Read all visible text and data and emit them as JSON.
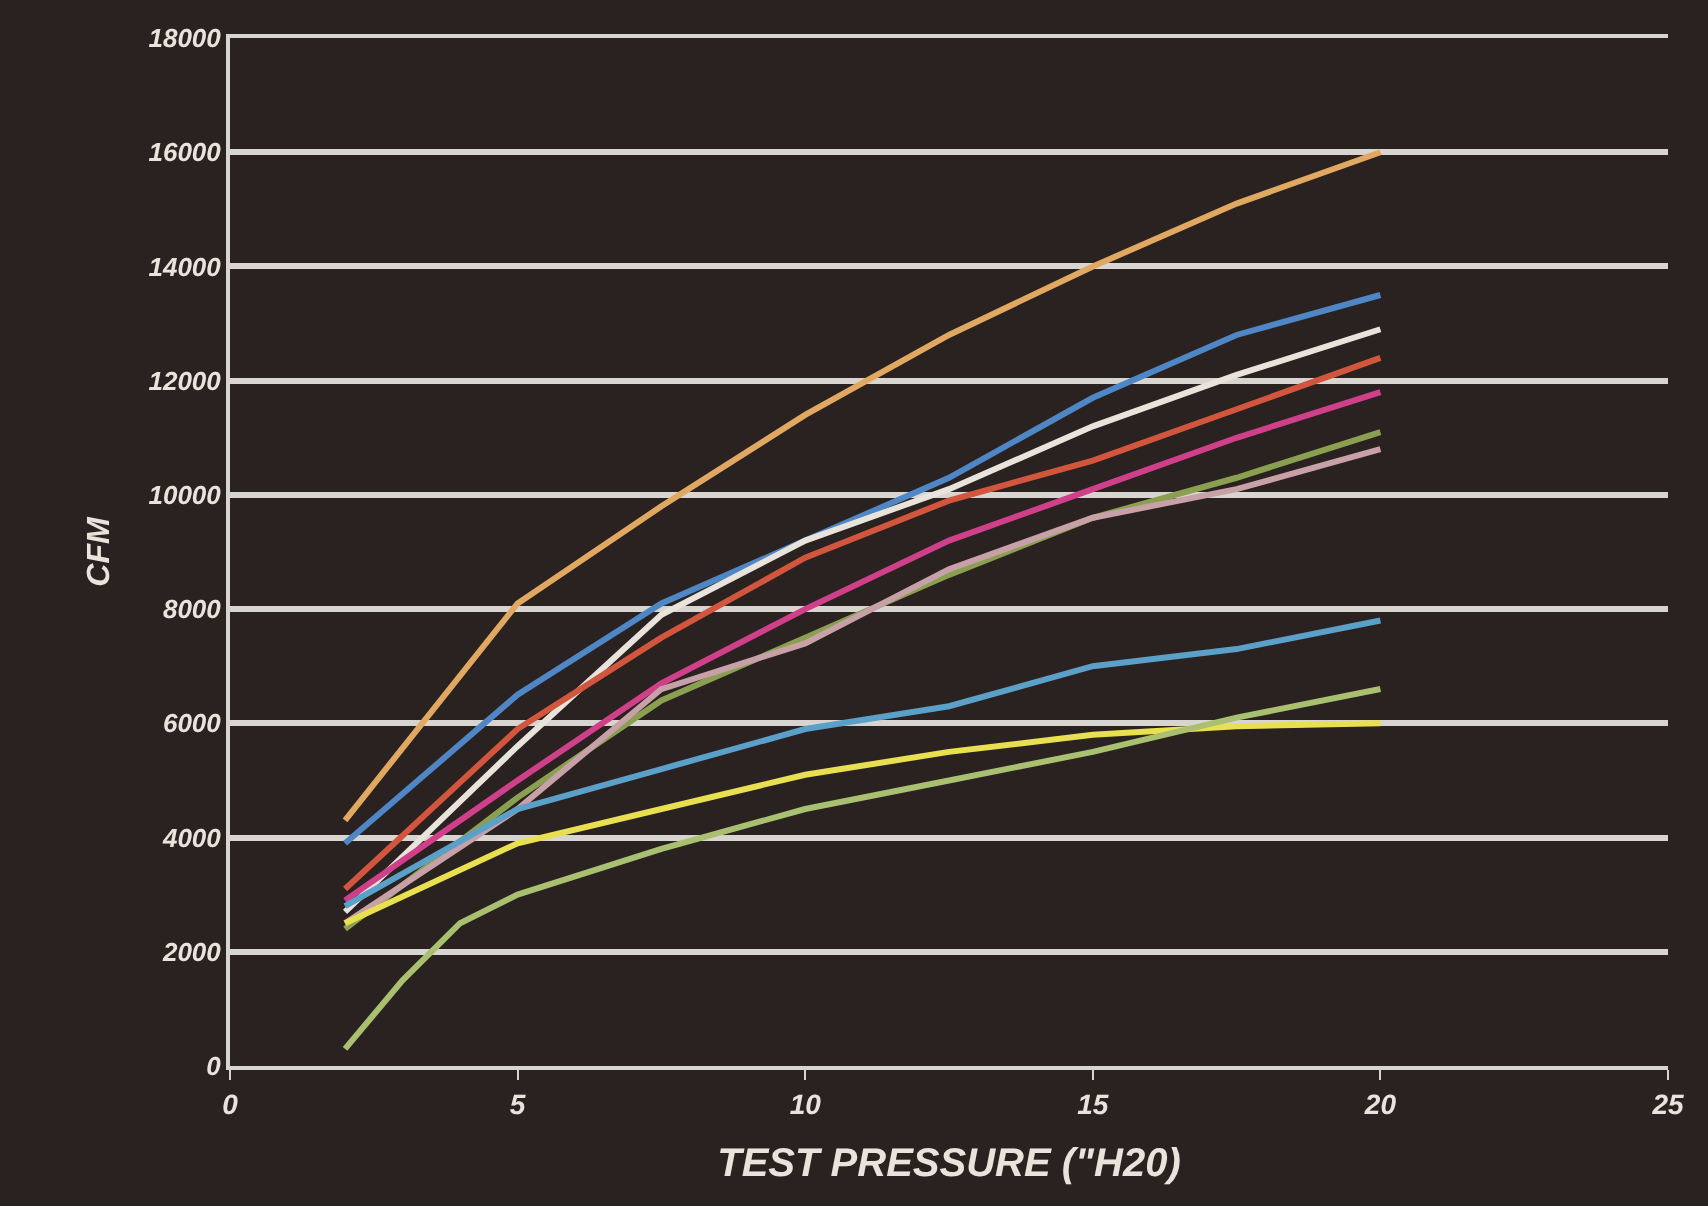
{
  "chart_data": {
    "type": "line",
    "xlabel": "TEST PRESSURE (\"H20)",
    "ylabel": "CFM",
    "x": [
      2,
      5,
      7.5,
      10,
      12.5,
      15,
      17.5,
      20
    ],
    "xlim": [
      0,
      25
    ],
    "xticks": [
      0,
      5,
      10,
      15,
      20,
      25
    ],
    "ylim": [
      0,
      18000
    ],
    "yticks": [
      0,
      2000,
      4000,
      6000,
      8000,
      10000,
      12000,
      14000,
      16000,
      18000
    ],
    "grid": "y",
    "marker": "none",
    "line_style": "solid",
    "series": [
      {
        "color": "#e0a860",
        "values": [
          4300,
          8100,
          9800,
          11400,
          12800,
          14000,
          15100,
          16000
        ]
      },
      {
        "color": "#4f86c6",
        "values": [
          3900,
          6500,
          8100,
          9200,
          10300,
          11700,
          12800,
          13500
        ]
      },
      {
        "color": "#e8e4dc",
        "values": [
          2700,
          5600,
          7900,
          9200,
          10100,
          11200,
          12100,
          12900
        ]
      },
      {
        "color": "#d2553e",
        "values": [
          3100,
          5900,
          7500,
          8900,
          9900,
          10600,
          11500,
          12400
        ]
      },
      {
        "color": "#d0408a",
        "values": [
          2900,
          5000,
          6700,
          8000,
          9200,
          10100,
          11000,
          11800
        ]
      },
      {
        "color": "#8aa050",
        "values": [
          2400,
          4700,
          6400,
          7500,
          8600,
          9600,
          10300,
          11100
        ]
      },
      {
        "color": "#c8a0a8",
        "values": [
          2500,
          4500,
          6600,
          7400,
          8700,
          9600,
          10100,
          10800
        ]
      },
      {
        "color": "#5aa0c8",
        "values": [
          2800,
          4500,
          5200,
          5900,
          6300,
          7000,
          7300,
          7800
        ]
      },
      {
        "color": "#e8e050",
        "values": [
          2500,
          3900,
          4500,
          5100,
          5500,
          5800,
          5950,
          6000
        ]
      },
      {
        "color": "#a8c070",
        "x": [
          2,
          3,
          4,
          5,
          7.5,
          10,
          12.5,
          15,
          17.5,
          20
        ],
        "values": [
          300,
          1500,
          2500,
          3000,
          3800,
          4500,
          5000,
          5500,
          6100,
          6600
        ]
      }
    ]
  }
}
